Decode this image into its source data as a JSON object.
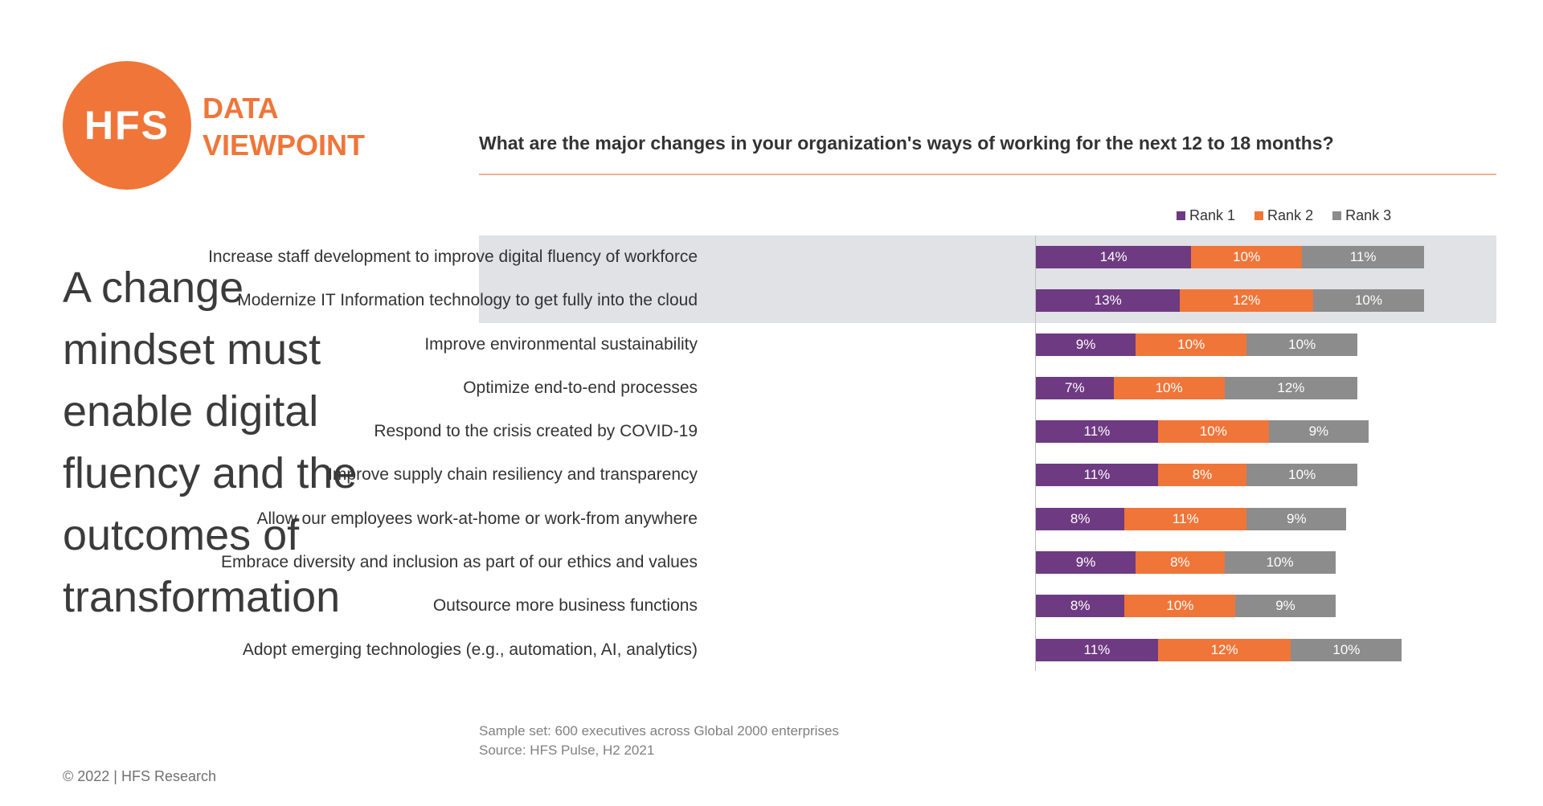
{
  "brand": {
    "logo_text": "HFS",
    "line1": "DATA",
    "line2": "VIEWPOINT",
    "color": "#F07539"
  },
  "headline": [
    "A change",
    "mindset must",
    "enable digital",
    "fluency and the",
    "outcomes of",
    "transformation"
  ],
  "copyright": "© 2022 | HFS Research",
  "footnote": {
    "line1": "Sample set: 600 executives across Global 2000 enterprises",
    "line2": "Source: HFS Pulse, H2 2021"
  },
  "chart_data": {
    "type": "bar",
    "orientation": "horizontal",
    "stacked": true,
    "title": "What are the major changes in your organization's ways of working for the next 12 to 18 months?",
    "legend_position": "top-right",
    "highlighted_rows": [
      0,
      1
    ],
    "categories": [
      "Increase staff development to improve digital fluency of workforce",
      "Modernize IT Information technology to get fully into the cloud",
      "Improve environmental sustainability",
      "Optimize end-to-end processes",
      "Respond to the crisis created by COVID-19",
      "Improve supply chain resiliency and transparency",
      "Allow our employees work-at-home or work-from anywhere",
      "Embrace diversity and inclusion as part of our ethics and values",
      "Outsource more business functions",
      "Adopt emerging technologies (e.g., automation, AI, analytics)"
    ],
    "series": [
      {
        "name": "Rank 1",
        "color": "#6E3A82",
        "values": [
          14,
          13,
          9,
          7,
          11,
          11,
          8,
          9,
          8,
          11
        ]
      },
      {
        "name": "Rank 2",
        "color": "#F07539",
        "values": [
          10,
          12,
          10,
          10,
          10,
          8,
          11,
          8,
          10,
          12
        ]
      },
      {
        "name": "Rank 3",
        "color": "#8C8C8C",
        "values": [
          11,
          10,
          10,
          12,
          9,
          10,
          9,
          10,
          9,
          10
        ]
      }
    ],
    "value_suffix": "%"
  }
}
